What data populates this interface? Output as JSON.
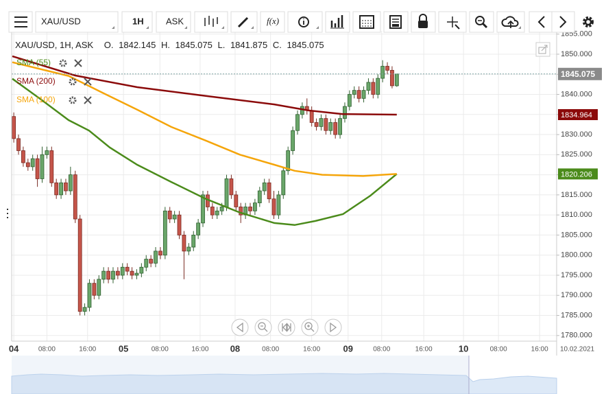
{
  "toolbar": {
    "symbol": "XAU/USD",
    "timeframe": "1H",
    "price_type": "ASK",
    "function": "f(x)"
  },
  "chart_data": {
    "type": "candlestick",
    "title": "XAU/USD, 1H, ASK",
    "ohlc_labels": [
      "O.",
      "H.",
      "L.",
      "C."
    ],
    "date": "10.02.2021",
    "x": [
      0,
      1,
      2,
      3,
      4,
      5,
      6,
      7,
      8,
      9,
      10,
      11,
      12,
      13,
      14,
      15,
      16,
      17,
      18,
      19,
      20,
      21,
      22,
      23,
      24,
      25,
      26,
      27,
      28,
      29,
      30,
      31,
      32,
      33,
      34,
      35,
      36,
      37,
      38,
      39,
      40,
      41,
      42,
      43,
      44,
      45,
      46,
      47,
      48,
      49,
      50,
      51,
      52,
      53,
      54,
      55,
      56,
      57,
      58,
      59,
      60,
      61,
      62,
      63,
      64,
      65,
      66,
      67,
      68,
      69,
      70,
      71,
      72,
      73,
      74,
      75,
      76,
      77,
      78,
      79,
      80,
      81
    ],
    "open": [
      1834.5,
      1829,
      1826,
      1823,
      1822,
      1824,
      1819,
      1825,
      1826,
      1818,
      1815,
      1818,
      1816,
      1820,
      1809,
      1786,
      1787,
      1793,
      1790,
      1794,
      1796,
      1794,
      1796,
      1795,
      1797,
      1796,
      1795,
      1795.5,
      1797,
      1799,
      1798,
      1801,
      1800,
      1811,
      1809,
      1810,
      1805,
      1801,
      1802,
      1805,
      1808,
      1815,
      1812,
      1810,
      1811,
      1812,
      1819,
      1815,
      1812,
      1810,
      1812,
      1811,
      1813,
      1816,
      1818,
      1814,
      1810,
      1815,
      1821,
      1826,
      1831,
      1835,
      1837,
      1836,
      1833,
      1832,
      1834,
      1831,
      1833,
      1830,
      1834,
      1837,
      1840,
      1841,
      1839,
      1841,
      1843,
      1840,
      1844,
      1847,
      1846,
      1842.145
    ],
    "high": [
      1835.5,
      1830,
      1827,
      1824,
      1825,
      1825,
      1827,
      1827,
      1827,
      1819,
      1819,
      1819,
      1822,
      1821,
      1810,
      1788,
      1794,
      1794,
      1795,
      1797,
      1797,
      1797,
      1797,
      1798,
      1798,
      1797,
      1796.5,
      1798,
      1800,
      1800,
      1802,
      1802,
      1812,
      1812,
      1811,
      1811,
      1806,
      1803,
      1806,
      1809,
      1816,
      1816,
      1813,
      1812,
      1813,
      1820,
      1820,
      1816,
      1813,
      1813,
      1813,
      1814,
      1817,
      1819,
      1819,
      1816,
      1816,
      1822,
      1827,
      1832,
      1836,
      1838,
      1839,
      1837,
      1834,
      1835,
      1835,
      1834,
      1834,
      1835,
      1838,
      1841,
      1842,
      1842,
      1842,
      1844,
      1844,
      1845,
      1848.5,
      1848,
      1847,
      1845.075
    ],
    "low": [
      1828,
      1825,
      1822,
      1821,
      1821,
      1817,
      1818,
      1824,
      1817,
      1814,
      1814,
      1815,
      1815,
      1808,
      1785,
      1785,
      1786,
      1789,
      1789,
      1793,
      1793,
      1793,
      1794,
      1794,
      1795,
      1794,
      1794,
      1794.5,
      1796,
      1797,
      1797,
      1799,
      1799,
      1808,
      1808,
      1804,
      1794,
      1800,
      1801,
      1804,
      1807,
      1811,
      1809,
      1809,
      1810,
      1811,
      1814,
      1811,
      1808,
      1809,
      1810,
      1810,
      1812,
      1815,
      1813,
      1809,
      1809,
      1814,
      1820,
      1825,
      1830,
      1834,
      1835,
      1832,
      1831,
      1831,
      1830,
      1830,
      1829,
      1829,
      1833,
      1836,
      1839,
      1838,
      1838,
      1840,
      1839,
      1839,
      1843,
      1845,
      1841.5,
      1841.875
    ],
    "close": [
      1829,
      1826,
      1823,
      1822,
      1824,
      1819,
      1825,
      1826,
      1818,
      1815,
      1818,
      1816,
      1820,
      1809,
      1786,
      1787,
      1793,
      1790,
      1794,
      1796,
      1794,
      1796,
      1795,
      1797,
      1796,
      1795,
      1795.5,
      1797,
      1799,
      1798,
      1801,
      1800,
      1811,
      1809,
      1810,
      1805,
      1801,
      1802,
      1805,
      1808,
      1815,
      1812,
      1810,
      1811,
      1812,
      1819,
      1815,
      1812,
      1810,
      1812,
      1811,
      1813,
      1816,
      1818,
      1814,
      1810,
      1815,
      1821,
      1826,
      1831,
      1835,
      1837,
      1836,
      1833,
      1832,
      1834,
      1831,
      1833,
      1830,
      1834,
      1837,
      1840,
      1841,
      1839,
      1841,
      1843,
      1840,
      1844,
      1847,
      1846,
      1842.145,
      1845.075
    ],
    "up_color": "#6aa66a",
    "down_color": "#c5554a",
    "last_price_line": true,
    "series": [
      {
        "name": "SMA (55)",
        "color": "#4b8b1b",
        "price_tag": true,
        "x": [
          -0.3,
          5.8,
          11.6,
          15.9,
          20.3,
          26.1,
          33.3,
          40.6,
          47.8,
          55.1,
          59.4,
          63.8,
          69.6,
          75.4,
          81
        ],
        "values": [
          1843.9,
          1838.7,
          1833.6,
          1831,
          1826.8,
          1822.5,
          1818.2,
          1814,
          1810.6,
          1808,
          1807.5,
          1808.5,
          1810.2,
          1814.8,
          1820.206
        ]
      },
      {
        "name": "SMA (200)",
        "color": "#8b0a0a",
        "price_tag": true,
        "x": [
          -0.3,
          13,
          26.1,
          40.6,
          55.1,
          62.3,
          69.6,
          81
        ],
        "values": [
          1849.5,
          1844.7,
          1841.8,
          1839.6,
          1837.5,
          1836,
          1835.1,
          1834.964
        ]
      },
      {
        "name": "SMA (100)",
        "color": "#f5a50a",
        "price_tag": false,
        "x": [
          -0.3,
          11.6,
          18.8,
          26.1,
          33.3,
          40.6,
          47.8,
          55.1,
          59.4,
          65.2,
          73.9,
          81
        ],
        "values": [
          1848,
          1844.6,
          1840.4,
          1836.2,
          1831.9,
          1828.5,
          1825,
          1822.5,
          1821,
          1820,
          1819.7,
          1820.2
        ]
      }
    ],
    "xlim": [
      -0.45,
      114.8
    ],
    "xticks": [
      {
        "value": 0,
        "label": "04"
      },
      {
        "value": 7,
        "label": "08:00"
      },
      {
        "value": 15.6,
        "label": "16:00"
      },
      {
        "value": 23.2,
        "label": "05"
      },
      {
        "value": 30.9,
        "label": "08:00"
      },
      {
        "value": 39.4,
        "label": "16:00"
      },
      {
        "value": 46.8,
        "label": "08"
      },
      {
        "value": 54.3,
        "label": "08:00"
      },
      {
        "value": 63,
        "label": "16:00"
      },
      {
        "value": 70.7,
        "label": "09"
      },
      {
        "value": 77.8,
        "label": "08:00"
      },
      {
        "value": 86.7,
        "label": "16:00"
      },
      {
        "value": 95.1,
        "label": "10"
      },
      {
        "value": 102.5,
        "label": "08:00"
      },
      {
        "value": 111.2,
        "label": "16:00"
      }
    ],
    "ylim": [
      1778.6,
      1855.8
    ],
    "yticks": [
      {
        "value": 1780,
        "label": "1780.000"
      },
      {
        "value": 1785,
        "label": "1785.000"
      },
      {
        "value": 1790,
        "label": "1790.000"
      },
      {
        "value": 1795,
        "label": "1795.000"
      },
      {
        "value": 1800,
        "label": "1800.000"
      },
      {
        "value": 1805,
        "label": "1805.000"
      },
      {
        "value": 1810,
        "label": "1810.000"
      },
      {
        "value": 1815,
        "label": "1815.000"
      },
      {
        "value": 1820,
        "label": "1820.000"
      },
      {
        "value": 1825,
        "label": "1825.000"
      },
      {
        "value": 1830,
        "label": "1830.000"
      },
      {
        "value": 1835,
        "label": "1835.000"
      },
      {
        "value": 1840,
        "label": "1840.000"
      },
      {
        "value": 1845,
        "label": "1845.000"
      },
      {
        "value": 1850,
        "label": "1850.000"
      },
      {
        "value": 1855,
        "label": "1855.000"
      }
    ],
    "grid": true
  }
}
